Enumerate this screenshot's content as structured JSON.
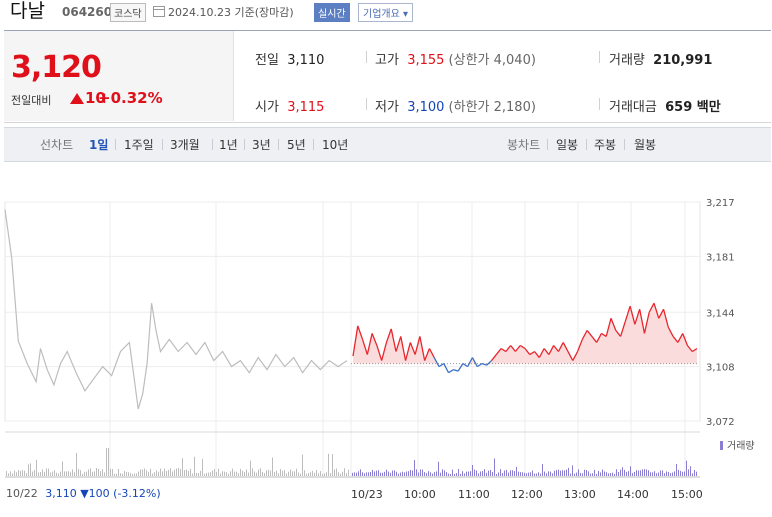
{
  "header": {
    "name": "다날",
    "code": "064260",
    "market": "코스닥",
    "date": "2024.10.23 기준(장마감)",
    "realtime": "실시간",
    "corp_info": "기업개요 ▾"
  },
  "quote": {
    "price": "3,120",
    "change_label": "전일대비",
    "change": "10",
    "change_pct": "+0.32%"
  },
  "stats": {
    "prev_label": "전일",
    "prev": "3,110",
    "high_label": "고가",
    "high": "3,155",
    "upper_limit": "(상한가 4,040)",
    "volume_label": "거래량",
    "volume": "210,991",
    "open_label": "시가",
    "open": "3,115",
    "low_label": "저가",
    "low": "3,100",
    "lower_limit": "(하한가 2,180)",
    "amount_label": "거래대금",
    "amount": "659 백만"
  },
  "tabs": {
    "line_label": "선차트",
    "line": [
      "1일",
      "1주일",
      "3개월",
      "1년",
      "3년",
      "5년",
      "10년"
    ],
    "candle_label": "봉차트",
    "candle": [
      "일봉",
      "주봉",
      "월봉"
    ]
  },
  "footer": {
    "prev_date": "10/22",
    "prev_close": "3,110",
    "prev_change": "▼100 (-3.12%)"
  },
  "chart_data": {
    "type": "line",
    "y_ticks": [
      3217,
      3181,
      3144,
      3108,
      3072
    ],
    "ylim": [
      3072,
      3217
    ],
    "reference": 3110,
    "x_ticks": [
      "10/23",
      "10:00",
      "11:00",
      "12:00",
      "13:00",
      "14:00",
      "15:00"
    ],
    "legend": "거래량",
    "colors": {
      "up": "#e8262d",
      "down": "#3c72c8",
      "prev": "#bdbdbd",
      "fill_up": "#fbdcdc",
      "volume": "#8a7ed0"
    },
    "prev_day": {
      "date": "10/22",
      "points": [
        [
          0,
          3212
        ],
        [
          3,
          3180
        ],
        [
          6,
          3125
        ],
        [
          10,
          3110
        ],
        [
          14,
          3098
        ],
        [
          16,
          3120
        ],
        [
          19,
          3106
        ],
        [
          22,
          3096
        ],
        [
          25,
          3110
        ],
        [
          28,
          3118
        ],
        [
          32,
          3104
        ],
        [
          36,
          3092
        ],
        [
          40,
          3100
        ],
        [
          44,
          3108
        ],
        [
          48,
          3102
        ],
        [
          52,
          3118
        ],
        [
          56,
          3124
        ],
        [
          58,
          3102
        ],
        [
          60,
          3080
        ],
        [
          62,
          3090
        ],
        [
          64,
          3110
        ],
        [
          66,
          3150
        ],
        [
          68,
          3132
        ],
        [
          70,
          3118
        ],
        [
          74,
          3126
        ],
        [
          78,
          3118
        ],
        [
          82,
          3124
        ],
        [
          86,
          3116
        ],
        [
          90,
          3124
        ],
        [
          94,
          3112
        ],
        [
          98,
          3118
        ],
        [
          102,
          3108
        ],
        [
          106,
          3112
        ],
        [
          110,
          3104
        ],
        [
          114,
          3114
        ],
        [
          118,
          3106
        ],
        [
          122,
          3116
        ],
        [
          126,
          3108
        ],
        [
          130,
          3114
        ],
        [
          134,
          3104
        ],
        [
          138,
          3112
        ],
        [
          142,
          3106
        ],
        [
          146,
          3112
        ],
        [
          150,
          3108
        ],
        [
          154,
          3112
        ]
      ]
    },
    "today": {
      "date": "10/23",
      "points": [
        [
          0,
          3115
        ],
        [
          2,
          3135
        ],
        [
          4,
          3126
        ],
        [
          6,
          3116
        ],
        [
          8,
          3130
        ],
        [
          10,
          3122
        ],
        [
          12,
          3112
        ],
        [
          14,
          3124
        ],
        [
          16,
          3133
        ],
        [
          18,
          3118
        ],
        [
          20,
          3128
        ],
        [
          22,
          3112
        ],
        [
          24,
          3124
        ],
        [
          26,
          3116
        ],
        [
          28,
          3128
        ],
        [
          30,
          3112
        ],
        [
          32,
          3120
        ],
        [
          34,
          3114
        ],
        [
          36,
          3108
        ],
        [
          38,
          3110
        ],
        [
          40,
          3104
        ],
        [
          42,
          3106
        ],
        [
          44,
          3105
        ],
        [
          46,
          3110
        ],
        [
          48,
          3108
        ],
        [
          50,
          3114
        ],
        [
          52,
          3108
        ],
        [
          54,
          3110
        ],
        [
          56,
          3109
        ],
        [
          58,
          3112
        ],
        [
          60,
          3116
        ],
        [
          62,
          3120
        ],
        [
          64,
          3118
        ],
        [
          66,
          3122
        ],
        [
          68,
          3118
        ],
        [
          70,
          3122
        ],
        [
          72,
          3120
        ],
        [
          74,
          3116
        ],
        [
          76,
          3118
        ],
        [
          78,
          3114
        ],
        [
          80,
          3120
        ],
        [
          82,
          3116
        ],
        [
          84,
          3122
        ],
        [
          86,
          3118
        ],
        [
          88,
          3124
        ],
        [
          90,
          3118
        ],
        [
          92,
          3112
        ],
        [
          94,
          3118
        ],
        [
          96,
          3126
        ],
        [
          98,
          3132
        ],
        [
          100,
          3128
        ],
        [
          102,
          3124
        ],
        [
          104,
          3130
        ],
        [
          106,
          3128
        ],
        [
          108,
          3140
        ],
        [
          110,
          3132
        ],
        [
          112,
          3128
        ],
        [
          114,
          3138
        ],
        [
          116,
          3148
        ],
        [
          118,
          3136
        ],
        [
          120,
          3146
        ],
        [
          122,
          3130
        ],
        [
          124,
          3144
        ],
        [
          126,
          3150
        ],
        [
          128,
          3140
        ],
        [
          130,
          3146
        ],
        [
          132,
          3134
        ],
        [
          134,
          3128
        ],
        [
          136,
          3124
        ],
        [
          138,
          3130
        ],
        [
          140,
          3122
        ],
        [
          142,
          3118
        ],
        [
          144,
          3120
        ]
      ]
    }
  }
}
